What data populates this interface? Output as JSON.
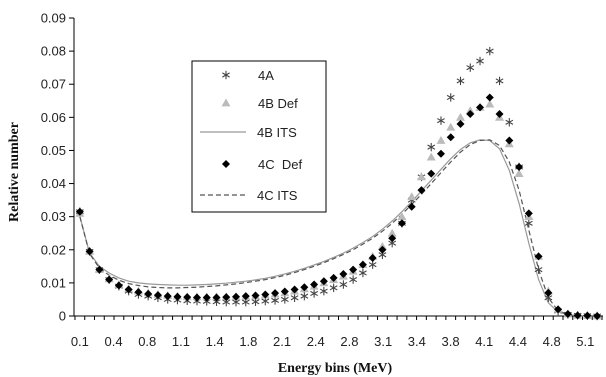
{
  "chart_data": {
    "type": "scatter",
    "title": "",
    "xlabel": "Energy bins (MeV)",
    "ylabel": "Relative number",
    "ylim": [
      0,
      0.09
    ],
    "yticks": [
      "0",
      "0.01",
      "0.02",
      "0.03",
      "0.04",
      "0.05",
      "0.06",
      "0.07",
      "0.08",
      "0.09"
    ],
    "xticks": [
      "0.1",
      "0.4",
      "0.8",
      "1.1",
      "1.4",
      "1.8",
      "2.1",
      "2.4",
      "2.8",
      "3.1",
      "3.4",
      "3.8",
      "4.1",
      "4.4",
      "4.8",
      "5.1"
    ],
    "grid": false,
    "legend_position": "upper-left-center",
    "x": [
      0.1,
      0.2,
      0.3,
      0.4,
      0.5,
      0.6,
      0.7,
      0.8,
      0.9,
      1.0,
      1.1,
      1.2,
      1.3,
      1.4,
      1.5,
      1.6,
      1.7,
      1.8,
      1.9,
      2.0,
      2.1,
      2.2,
      2.3,
      2.4,
      2.5,
      2.6,
      2.7,
      2.8,
      2.9,
      3.0,
      3.1,
      3.2,
      3.3,
      3.4,
      3.5,
      3.6,
      3.7,
      3.8,
      3.9,
      4.0,
      4.1,
      4.2,
      4.3,
      4.4,
      4.5,
      4.6,
      4.7,
      4.8,
      4.9,
      5.0,
      5.1,
      5.2,
      5.3,
      5.4
    ],
    "series": [
      {
        "name": "4A",
        "marker": "asterisk",
        "color": "#444444",
        "values": [
          0.0315,
          0.0195,
          0.014,
          0.011,
          0.009,
          0.0075,
          0.0065,
          0.006,
          0.0055,
          0.005,
          0.0048,
          0.0046,
          0.0045,
          0.0044,
          0.0043,
          0.0042,
          0.0042,
          0.0042,
          0.0043,
          0.0045,
          0.0047,
          0.005,
          0.0055,
          0.006,
          0.0068,
          0.0075,
          0.0085,
          0.0095,
          0.011,
          0.013,
          0.0155,
          0.0185,
          0.022,
          0.028,
          0.035,
          0.042,
          0.051,
          0.059,
          0.066,
          0.071,
          0.075,
          0.077,
          0.08,
          0.071,
          0.0585,
          0.045,
          0.028,
          0.014,
          0.0055,
          0.0015,
          0.0005,
          0.0002,
          0.0001,
          0.0
        ]
      },
      {
        "name": "4B Def",
        "marker": "triangle",
        "color": "#bbbbbb",
        "values": [
          0.031,
          0.0195,
          0.014,
          0.0112,
          0.0095,
          0.0082,
          0.0075,
          0.007,
          0.0065,
          0.0062,
          0.006,
          0.0058,
          0.0058,
          0.0058,
          0.0058,
          0.0058,
          0.0058,
          0.0059,
          0.006,
          0.0063,
          0.0066,
          0.007,
          0.0075,
          0.0082,
          0.009,
          0.01,
          0.011,
          0.012,
          0.0135,
          0.0155,
          0.018,
          0.021,
          0.025,
          0.03,
          0.036,
          0.042,
          0.048,
          0.053,
          0.057,
          0.06,
          0.062,
          0.063,
          0.064,
          0.06,
          0.052,
          0.043,
          0.03,
          0.018,
          0.0075,
          0.002,
          0.0006,
          0.0002,
          0.0001,
          0.0
        ]
      },
      {
        "name": "4B ITS",
        "marker": "line-solid",
        "color": "#999999",
        "values": [
          0.03,
          0.019,
          0.015,
          0.013,
          0.0115,
          0.0105,
          0.01,
          0.0097,
          0.0095,
          0.0094,
          0.0093,
          0.0093,
          0.0094,
          0.0095,
          0.0097,
          0.0099,
          0.0102,
          0.0105,
          0.0109,
          0.0114,
          0.012,
          0.0127,
          0.0135,
          0.0144,
          0.0154,
          0.0165,
          0.0177,
          0.019,
          0.0205,
          0.0222,
          0.024,
          0.0262,
          0.0287,
          0.0315,
          0.0345,
          0.0378,
          0.041,
          0.0443,
          0.0475,
          0.0503,
          0.0523,
          0.0532,
          0.053,
          0.0505,
          0.044,
          0.034,
          0.022,
          0.011,
          0.004,
          0.0012,
          0.0004,
          0.0001,
          0.0,
          0.0
        ]
      },
      {
        "name": "4C  Def",
        "marker": "diamond",
        "color": "#000000",
        "values": [
          0.0315,
          0.0195,
          0.014,
          0.011,
          0.0092,
          0.008,
          0.0072,
          0.0067,
          0.0063,
          0.006,
          0.0058,
          0.0057,
          0.0056,
          0.0056,
          0.0056,
          0.0057,
          0.0058,
          0.006,
          0.0062,
          0.0065,
          0.0069,
          0.0074,
          0.008,
          0.0087,
          0.0095,
          0.0105,
          0.0115,
          0.0127,
          0.014,
          0.0155,
          0.0175,
          0.02,
          0.0235,
          0.028,
          0.033,
          0.038,
          0.043,
          0.049,
          0.054,
          0.058,
          0.061,
          0.063,
          0.066,
          0.061,
          0.053,
          0.045,
          0.031,
          0.018,
          0.007,
          0.002,
          0.0006,
          0.0002,
          0.0001,
          0.0
        ]
      },
      {
        "name": "4C ITS",
        "marker": "line-dashed",
        "color": "#555555",
        "values": [
          0.03,
          0.0188,
          0.0145,
          0.0123,
          0.0108,
          0.0098,
          0.0092,
          0.0088,
          0.0086,
          0.0085,
          0.0085,
          0.0086,
          0.0087,
          0.0089,
          0.0091,
          0.0094,
          0.0097,
          0.0101,
          0.0105,
          0.011,
          0.0116,
          0.0123,
          0.0131,
          0.014,
          0.015,
          0.0161,
          0.0173,
          0.0186,
          0.02,
          0.0217,
          0.0235,
          0.0256,
          0.028,
          0.0307,
          0.0337,
          0.0368,
          0.04,
          0.0433,
          0.0465,
          0.0495,
          0.0518,
          0.053,
          0.0532,
          0.0515,
          0.0465,
          0.038,
          0.026,
          0.014,
          0.0055,
          0.0016,
          0.0005,
          0.0002,
          0.0,
          0.0
        ]
      }
    ]
  }
}
